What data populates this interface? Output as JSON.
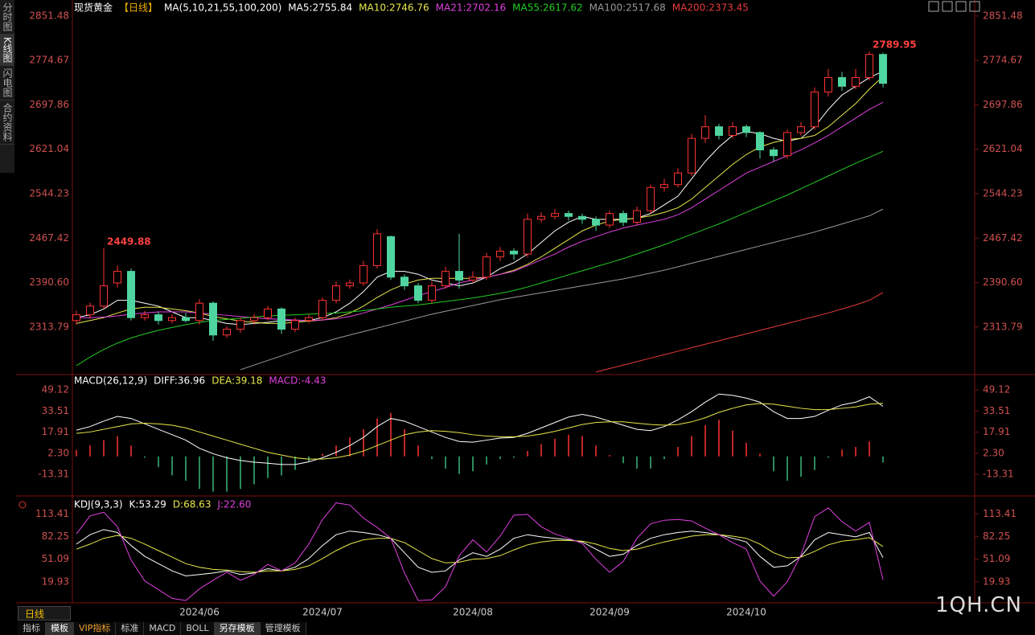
{
  "ui": {
    "sidebar": [
      "分时图",
      "K线图",
      "闪电图",
      "合约资料"
    ],
    "period": "日线",
    "tabs": [
      "指标",
      "模板",
      "VIP指标",
      "标准",
      "MACD",
      "BOLL",
      "另存模板",
      "管理模板"
    ],
    "watermark": "1QH.CN"
  },
  "chart_data": [
    {
      "type": "candlestick",
      "title": "现货黄金",
      "subtitle": "【日线】",
      "indicator": "MA(5,10,21,55,100,200)",
      "up_color": "#ff3232",
      "down_color": "#4fd6a0",
      "categories": [
        null,
        null,
        null,
        null,
        null,
        null,
        null,
        null,
        null,
        "2024/06",
        null,
        null,
        null,
        null,
        null,
        null,
        null,
        null,
        "2024/07",
        null,
        null,
        null,
        null,
        null,
        null,
        null,
        null,
        null,
        null,
        "2024/08",
        null,
        null,
        null,
        null,
        null,
        null,
        null,
        null,
        null,
        "2024/09",
        null,
        null,
        null,
        null,
        null,
        null,
        null,
        null,
        null,
        "2024/10",
        null,
        null,
        null,
        null,
        null,
        null,
        null,
        null,
        null,
        null
      ],
      "open": [
        2325,
        2335,
        2350,
        2390,
        2410,
        2330,
        2335,
        2325,
        2330,
        2325,
        2355,
        2300,
        2310,
        2325,
        2330,
        2345,
        2310,
        2325,
        2330,
        2360,
        2385,
        2390,
        2420,
        2470,
        2400,
        2385,
        2360,
        2385,
        2410,
        2395,
        2400,
        2435,
        2445,
        2440,
        2500,
        2505,
        2510,
        2505,
        2500,
        2490,
        2510,
        2495,
        2515,
        2555,
        2560,
        2580,
        2640,
        2660,
        2645,
        2660,
        2650,
        2620,
        2610,
        2650,
        2660,
        2720,
        2745,
        2730,
        2745,
        2785
      ],
      "high": [
        2342,
        2356,
        2449.88,
        2420,
        2415,
        2342,
        2340,
        2336,
        2338,
        2362,
        2358,
        2315,
        2330,
        2336,
        2350,
        2348,
        2330,
        2335,
        2365,
        2392,
        2396,
        2428,
        2483,
        2472,
        2405,
        2390,
        2392,
        2418,
        2475,
        2410,
        2442,
        2452,
        2450,
        2510,
        2512,
        2518,
        2515,
        2510,
        2505,
        2515,
        2515,
        2522,
        2560,
        2570,
        2588,
        2648,
        2680,
        2665,
        2668,
        2664,
        2652,
        2625,
        2655,
        2668,
        2728,
        2760,
        2755,
        2760,
        2789.95,
        2788
      ],
      "low": [
        2318,
        2328,
        2345,
        2382,
        2325,
        2325,
        2318,
        2320,
        2322,
        2318,
        2290,
        2295,
        2304,
        2318,
        2325,
        2302,
        2305,
        2320,
        2326,
        2355,
        2380,
        2385,
        2415,
        2395,
        2378,
        2355,
        2355,
        2380,
        2380,
        2390,
        2395,
        2428,
        2430,
        2435,
        2495,
        2500,
        2498,
        2492,
        2480,
        2485,
        2488,
        2490,
        2510,
        2548,
        2555,
        2575,
        2632,
        2638,
        2640,
        2642,
        2605,
        2600,
        2605,
        2645,
        2655,
        2712,
        2722,
        2725,
        2740,
        2728
      ],
      "close": [
        2335,
        2350,
        2385,
        2410,
        2330,
        2335,
        2325,
        2330,
        2325,
        2355,
        2300,
        2310,
        2325,
        2330,
        2345,
        2310,
        2325,
        2330,
        2360,
        2385,
        2390,
        2420,
        2475,
        2400,
        2385,
        2360,
        2385,
        2410,
        2395,
        2400,
        2435,
        2445,
        2440,
        2500,
        2505,
        2510,
        2505,
        2500,
        2490,
        2510,
        2495,
        2515,
        2555,
        2560,
        2580,
        2640,
        2660,
        2645,
        2660,
        2650,
        2620,
        2610,
        2650,
        2660,
        2720,
        2745,
        2730,
        2745,
        2785,
        2735
      ],
      "series": [
        {
          "name": "MA5:2755.84",
          "color": "#ffffff",
          "values": [
            2330,
            2335,
            2345,
            2360,
            2360,
            2355,
            2350,
            2340,
            2330,
            2330,
            2325,
            2320,
            2318,
            2320,
            2322,
            2325,
            2325,
            2325,
            2330,
            2340,
            2355,
            2375,
            2400,
            2410,
            2410,
            2405,
            2395,
            2390,
            2385,
            2390,
            2400,
            2415,
            2425,
            2440,
            2460,
            2480,
            2495,
            2505,
            2500,
            2500,
            2500,
            2502,
            2510,
            2525,
            2540,
            2570,
            2600,
            2625,
            2645,
            2652,
            2648,
            2640,
            2635,
            2640,
            2660,
            2690,
            2715,
            2730,
            2745,
            2755.84
          ]
        },
        {
          "name": "MA10:2746.76",
          "color": "#e8e84a",
          "values": [
            2320,
            2325,
            2330,
            2338,
            2345,
            2348,
            2348,
            2345,
            2342,
            2338,
            2332,
            2328,
            2324,
            2322,
            2320,
            2320,
            2322,
            2324,
            2326,
            2330,
            2338,
            2350,
            2365,
            2378,
            2388,
            2395,
            2398,
            2398,
            2398,
            2398,
            2400,
            2405,
            2412,
            2422,
            2435,
            2450,
            2465,
            2480,
            2490,
            2497,
            2500,
            2502,
            2506,
            2512,
            2520,
            2535,
            2555,
            2575,
            2595,
            2612,
            2625,
            2633,
            2638,
            2640,
            2645,
            2660,
            2680,
            2700,
            2725,
            2746.76
          ]
        },
        {
          "name": "MA21:2702.16",
          "color": "#e040e0",
          "values": [
            2330,
            2330,
            2331,
            2333,
            2336,
            2338,
            2340,
            2340,
            2340,
            2338,
            2336,
            2334,
            2332,
            2330,
            2328,
            2327,
            2326,
            2325,
            2326,
            2328,
            2332,
            2338,
            2345,
            2352,
            2360,
            2368,
            2375,
            2382,
            2390,
            2395,
            2400,
            2405,
            2410,
            2420,
            2430,
            2440,
            2452,
            2462,
            2470,
            2478,
            2485,
            2490,
            2495,
            2500,
            2508,
            2520,
            2535,
            2550,
            2565,
            2580,
            2590,
            2600,
            2610,
            2620,
            2632,
            2645,
            2660,
            2675,
            2690,
            2702.16
          ]
        },
        {
          "name": "MA55:2617.62",
          "color": "#22cc22",
          "values": [
            2247,
            2262,
            2275,
            2286,
            2295,
            2302,
            2308,
            2313,
            2318,
            2322,
            2325,
            2327,
            2329,
            2331,
            2333,
            2334,
            2335,
            2336,
            2337,
            2338,
            2340,
            2342,
            2345,
            2348,
            2350,
            2352,
            2355,
            2358,
            2361,
            2364,
            2368,
            2372,
            2377,
            2383,
            2390,
            2397,
            2404,
            2411,
            2418,
            2425,
            2432,
            2440,
            2448,
            2456,
            2465,
            2474,
            2483,
            2492,
            2502,
            2512,
            2522,
            2532,
            2542,
            2553,
            2564,
            2575,
            2586,
            2597,
            2607,
            2617.62
          ]
        },
        {
          "name": "MA100:2517.68",
          "color": "#9a9a9a",
          "values": [
            null,
            null,
            null,
            null,
            null,
            null,
            null,
            null,
            null,
            null,
            null,
            null,
            2240,
            2248,
            2256,
            2264,
            2272,
            2280,
            2287,
            2294,
            2300,
            2306,
            2312,
            2318,
            2324,
            2330,
            2336,
            2341,
            2346,
            2351,
            2356,
            2361,
            2365,
            2369,
            2373,
            2377,
            2381,
            2385,
            2389,
            2393,
            2397,
            2402,
            2407,
            2412,
            2418,
            2424,
            2430,
            2436,
            2442,
            2448,
            2454,
            2460,
            2466,
            2472,
            2478,
            2485,
            2492,
            2499,
            2506,
            2517.68
          ]
        },
        {
          "name": "MA200:2373.45",
          "color": "#e83a3a",
          "values": [
            null,
            null,
            null,
            null,
            null,
            null,
            null,
            null,
            null,
            null,
            null,
            null,
            null,
            null,
            null,
            null,
            null,
            null,
            null,
            null,
            null,
            null,
            null,
            null,
            null,
            null,
            null,
            null,
            null,
            null,
            null,
            null,
            null,
            null,
            null,
            null,
            null,
            null,
            2236,
            2242,
            2248,
            2254,
            2260,
            2266,
            2272,
            2278,
            2284,
            2290,
            2296,
            2302,
            2308,
            2314,
            2320,
            2326,
            2332,
            2338,
            2345,
            2352,
            2360,
            2373.45
          ]
        }
      ],
      "ylim": [
        2233,
        2868
      ],
      "yticks": [
        2851.48,
        2774.67,
        2697.86,
        2621.04,
        2544.23,
        2467.42,
        {
          "value": 2390.6,
          "label": "2390.60"
        },
        2313.79
      ],
      "grid": false
    },
    {
      "type": "macd",
      "title": "MACD(26,12,9)",
      "series": [
        {
          "name": "DIFF:36.96",
          "color": "#ffffff",
          "values": [
            19.4,
            22,
            26,
            29.5,
            28,
            24,
            20,
            16,
            12,
            6,
            2,
            -1,
            -3,
            -4.3,
            -5,
            -6,
            -6,
            -4,
            -1,
            3,
            8,
            14,
            22,
            28,
            26,
            22,
            18,
            14,
            11,
            10.5,
            12,
            13.5,
            14,
            17,
            21,
            25,
            29,
            31,
            29,
            26,
            23,
            20,
            19,
            22,
            27,
            33,
            40,
            46,
            45,
            43,
            40,
            33,
            28,
            28,
            29.5,
            34,
            38,
            40,
            44,
            36.96
          ]
        },
        {
          "name": "DEA:39.18",
          "color": "#e8e84a",
          "values": [
            17,
            18,
            20,
            22,
            24,
            24.5,
            24,
            23,
            21,
            18,
            15,
            12,
            9,
            6,
            3,
            1,
            -1,
            -2,
            -2,
            -1,
            1,
            4,
            8,
            12,
            16,
            18,
            19,
            18.5,
            17.5,
            16,
            15,
            14.5,
            14.5,
            15,
            16.5,
            18.5,
            21,
            23.5,
            25,
            25.5,
            25.5,
            24.5,
            23.5,
            23,
            23.5,
            25.5,
            28.5,
            32.5,
            35.5,
            38,
            39,
            38.5,
            37,
            35.5,
            34.5,
            34.5,
            35.5,
            36.5,
            38.5,
            39.18
          ]
        }
      ],
      "histogram": {
        "name": "MACD:-4.43",
        "color": "#e040e0",
        "up_color": "#ff3232",
        "down_color": "#3ab87a",
        "values": [
          4.8,
          8,
          12,
          15,
          8,
          -1,
          -8,
          -14,
          -18,
          -24,
          -26,
          -26,
          -24,
          -20.6,
          -16,
          -14,
          -10,
          -4,
          2,
          8,
          14,
          20,
          28,
          32,
          20,
          8,
          -2,
          -9,
          -13,
          -11,
          -6,
          -2,
          -1,
          4,
          9,
          13,
          16,
          15,
          8,
          1,
          -5,
          -9,
          -9,
          -2,
          7,
          15,
          23,
          27,
          19,
          10,
          2,
          -11,
          -18,
          -15,
          -10,
          -1,
          5,
          7,
          11,
          -4.43
        ]
      },
      "ylim": [
        -28,
        58
      ],
      "yticks": [
        49.12,
        33.51,
        17.91,
        {
          "value": 2.3,
          "label": "2.30"
        },
        -13.31
      ]
    },
    {
      "type": "line",
      "title": "KDJ(9,3,3)",
      "series": [
        {
          "name": "K:53.29",
          "color": "#ffffff",
          "values": [
            72,
            85,
            92,
            88,
            70,
            55,
            45,
            35,
            28,
            30,
            32,
            35,
            30,
            32,
            38,
            35,
            40,
            52,
            70,
            85,
            90,
            88,
            85,
            80,
            60,
            40,
            33,
            35,
            50,
            60,
            55,
            65,
            80,
            85,
            82,
            80,
            78,
            75,
            65,
            55,
            58,
            70,
            80,
            85,
            88,
            90,
            88,
            85,
            80,
            75,
            55,
            40,
            42,
            55,
            78,
            88,
            85,
            82,
            88,
            53.29
          ]
        },
        {
          "name": "D:68.63",
          "color": "#e8e84a",
          "values": [
            65,
            72,
            80,
            84,
            80,
            72,
            63,
            54,
            45,
            40,
            37,
            36,
            34,
            33,
            35,
            35,
            37,
            42,
            52,
            63,
            72,
            78,
            80,
            80,
            74,
            63,
            52,
            46,
            47,
            51,
            52,
            56,
            64,
            71,
            75,
            77,
            77,
            76,
            72,
            66,
            63,
            65,
            70,
            75,
            79,
            83,
            85,
            85,
            83,
            80,
            72,
            60,
            53,
            54,
            62,
            71,
            76,
            78,
            81,
            68.63
          ]
        },
        {
          "name": "J:22.60",
          "color": "#e040e0",
          "values": [
            86,
            111,
            116,
            96,
            50,
            21,
            9,
            -3,
            -6,
            10,
            22,
            33,
            22,
            30,
            44,
            35,
            46,
            72,
            106,
            129,
            126,
            108,
            95,
            80,
            32,
            -6,
            -5,
            13,
            56,
            78,
            61,
            83,
            112,
            113,
            96,
            86,
            80,
            73,
            51,
            33,
            48,
            80,
            100,
            105,
            106,
            104,
            94,
            85,
            74,
            65,
            21,
            0,
            20,
            57,
            110,
            122,
            103,
            90,
            102,
            22.6
          ]
        }
      ],
      "ylim": [
        -7,
        133
      ],
      "yticks": [
        113.41,
        82.25,
        51.09,
        19.93
      ]
    }
  ]
}
